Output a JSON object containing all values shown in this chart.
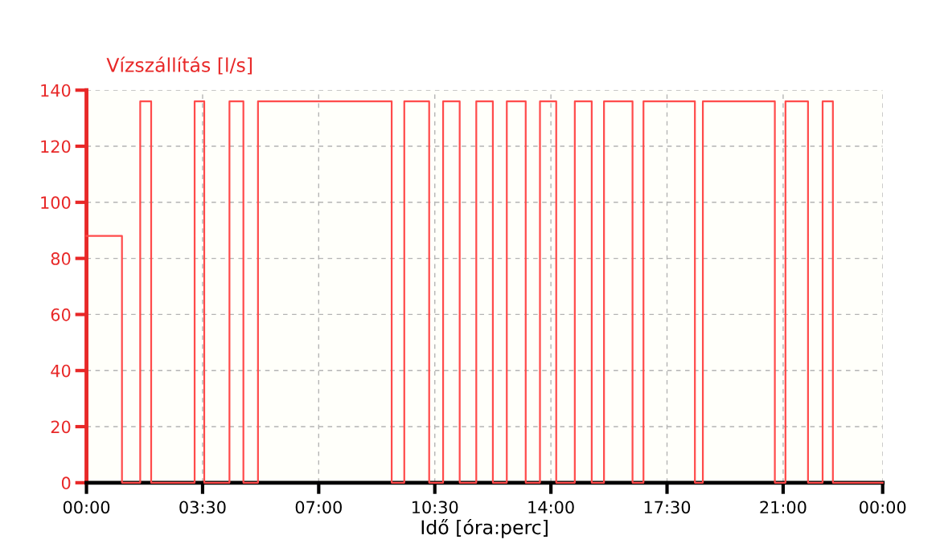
{
  "chart_data": {
    "type": "step",
    "ylabel": "Vízszállítás [l/s]",
    "xlabel": "Idő [óra:perc]",
    "x": [
      0,
      1.07,
      1.62,
      1.95,
      3.26,
      3.55,
      4.31,
      4.73,
      5.17,
      9.2,
      9.58,
      10.33,
      10.75,
      11.25,
      11.75,
      12.25,
      12.67,
      13.24,
      13.67,
      14.16,
      14.72,
      15.23,
      15.6,
      16.46,
      16.79,
      18.34,
      18.58,
      20.75,
      21.07,
      21.75,
      22.19,
      22.5,
      24
    ],
    "series": [
      {
        "color": "#ff4b4b",
        "values": [
          88,
          0,
          136,
          0,
          136,
          0,
          136,
          0,
          136,
          0,
          136,
          0,
          136,
          0,
          136,
          0,
          136,
          0,
          136,
          0,
          136,
          0,
          136,
          0,
          136,
          0,
          136,
          0,
          136,
          0,
          136,
          0,
          0
        ]
      }
    ],
    "xlim": [
      0,
      24
    ],
    "xticks": [
      {
        "value": 0,
        "label": "00:00"
      },
      {
        "value": 3.5,
        "label": "03:30"
      },
      {
        "value": 7,
        "label": "07:00"
      },
      {
        "value": 10.5,
        "label": "10:30"
      },
      {
        "value": 14,
        "label": "14:00"
      },
      {
        "value": 17.5,
        "label": "17:30"
      },
      {
        "value": 21,
        "label": "21:00"
      },
      {
        "value": 24,
        "label": "00:00"
      }
    ],
    "ylim": [
      0,
      140
    ],
    "yticks": [
      0,
      20,
      40,
      60,
      80,
      100,
      120,
      140
    ],
    "grid": true,
    "line_style": "solid"
  }
}
